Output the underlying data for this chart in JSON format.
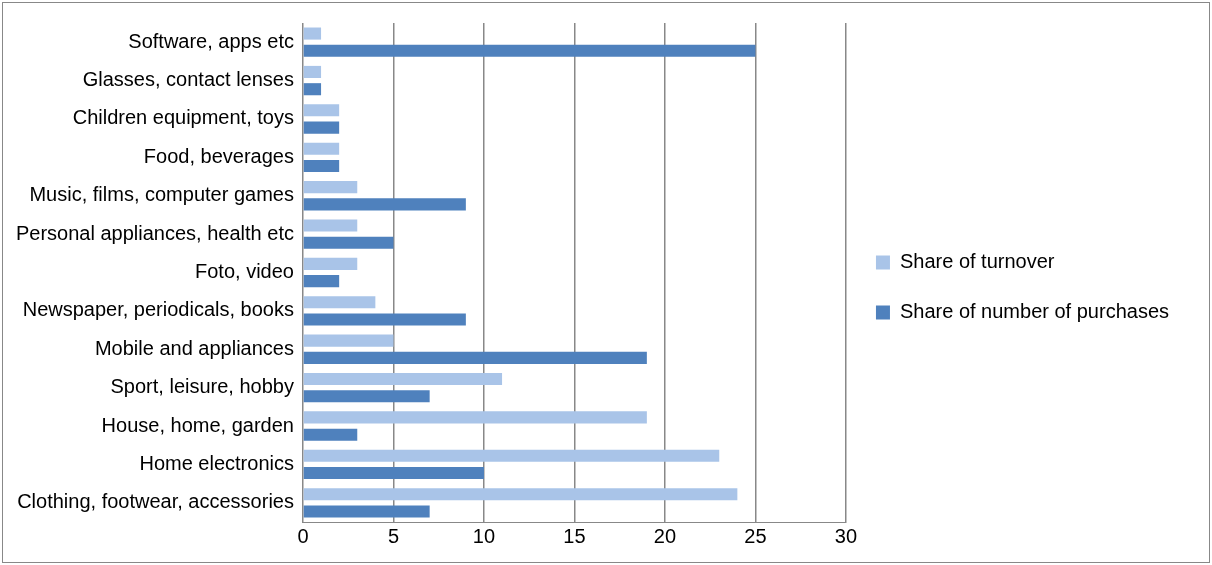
{
  "chart_data": {
    "type": "bar",
    "orientation": "horizontal",
    "categories": [
      "Software, apps etc",
      "Glasses, contact lenses",
      "Children equipment, toys",
      "Food, beverages",
      "Music, films, computer games",
      "Personal appliances, health etc",
      "Foto, video",
      "Newspaper, periodicals, books",
      "Mobile and appliances",
      "Sport, leisure, hobby",
      "House, home, garden",
      "Home electronics",
      "Clothing, footwear, accessories"
    ],
    "series": [
      {
        "name": "Share of turnover",
        "color": "#a9c4e8",
        "values": [
          1,
          1,
          2,
          2,
          3,
          3,
          3,
          4,
          5,
          11,
          19,
          23,
          24
        ]
      },
      {
        "name": "Share of number of purchases",
        "color": "#4f81bd",
        "values": [
          25,
          1,
          2,
          2,
          9,
          5,
          2,
          9,
          19,
          7,
          3,
          10,
          7
        ]
      }
    ],
    "xlim": [
      0,
      30
    ],
    "xticks": [
      0,
      5,
      10,
      15,
      20,
      25,
      30
    ],
    "grid": "x",
    "legend": "right"
  }
}
